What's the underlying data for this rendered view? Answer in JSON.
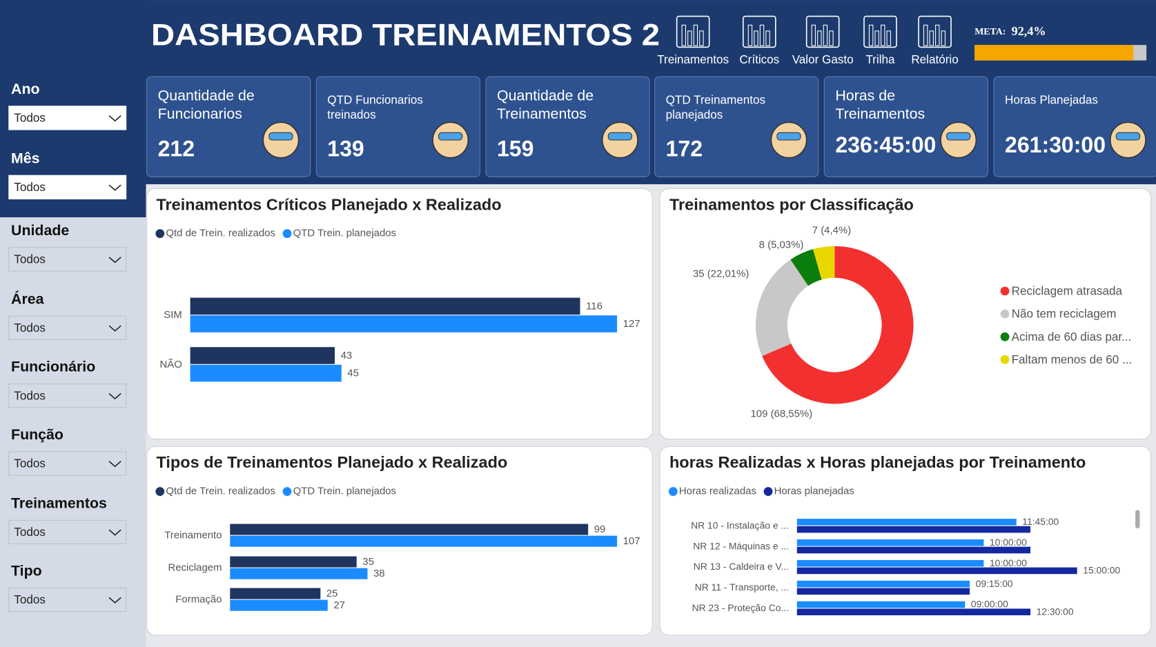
{
  "header": {
    "title": "DASHBOARD TREINAMENTOS 2"
  },
  "nav": [
    "Treinamentos",
    "Críticos",
    "Valor Gasto",
    "Trilha",
    "Relatório"
  ],
  "meta": {
    "label": "META:",
    "value": 92.4,
    "value_label": "92,4%",
    "color": "#f7a600"
  },
  "filters": [
    {
      "label": "Ano",
      "value": "Todos"
    },
    {
      "label": "Mês",
      "value": "Todos"
    },
    {
      "label": "Unidade",
      "value": "Todos"
    },
    {
      "label": "Área",
      "value": "Todos"
    },
    {
      "label": "Funcionário",
      "value": "Todos"
    },
    {
      "label": "Função",
      "value": "Todos"
    },
    {
      "label": "Treinamentos",
      "value": "Todos"
    },
    {
      "label": "Tipo",
      "value": "Todos"
    }
  ],
  "kpis": [
    {
      "label": "Quantidade de Funcionarios",
      "value": 212
    },
    {
      "label": "QTD Funcionarios treinados",
      "value": 139
    },
    {
      "label": "Quantidade de Treinamentos",
      "value": 159
    },
    {
      "label": "QTD Treinamentos planejados",
      "value": 172
    },
    {
      "label": "Horas de Treinamentos",
      "value": "236:45:00"
    },
    {
      "label": "Horas Planejadas",
      "value": "261:30:00"
    }
  ],
  "chart_data": [
    {
      "type": "bar",
      "title": "Treinamentos Críticos Planejado x Realizado",
      "categories": [
        "SIM",
        "NÃO"
      ],
      "series": [
        {
          "name": "Qtd de Trein. realizados",
          "color": "#1f3560",
          "values": [
            116,
            43
          ]
        },
        {
          "name": "QTD Trein. planejados",
          "color": "#1a8cff",
          "values": [
            127,
            45
          ]
        }
      ]
    },
    {
      "type": "donut",
      "title": "Treinamentos por Classificação",
      "categories": [
        "Reciclagem atrasada",
        "Não tem reciclagem",
        "Acima de 60 dias par...",
        "Faltam menos de 60 ..."
      ],
      "values": [
        109,
        35,
        8,
        7
      ],
      "value_labels": [
        "109 (68,55%)",
        "35 (22,01%)",
        "8 (5,03%)",
        "7 (4,4%)"
      ],
      "colors": [
        "#f23030",
        "#c8c8c8",
        "#0b7d0b",
        "#e8d800"
      ]
    },
    {
      "type": "bar",
      "title": "Tipos de Treinamentos Planejado x Realizado",
      "categories": [
        "Treinamento",
        "Reciclagem",
        "Formação"
      ],
      "series": [
        {
          "name": "Qtd de Trein. realizados",
          "color": "#1f3560",
          "values": [
            99,
            35,
            25
          ]
        },
        {
          "name": "QTD Trein. planejados",
          "color": "#1a8cff",
          "values": [
            107,
            38,
            27
          ]
        }
      ]
    },
    {
      "type": "bar",
      "title": "horas Realizadas x Horas planejadas por Treinamento",
      "categories": [
        "NR 10 - Instalação e ...",
        "NR 12 - Máquinas e ...",
        "NR 13 - Caldeira e V...",
        "NR 11 - Transporte, ...",
        "NR 23 - Proteção Co..."
      ],
      "series": [
        {
          "name": "Horas realizadas",
          "color": "#1a8cff",
          "values": [
            11.75,
            10,
            10,
            9.25,
            9
          ],
          "value_labels": [
            "11:45:00",
            "10:00:00",
            "10:00:00",
            "09:15:00",
            "09:00:00"
          ]
        },
        {
          "name": "Horas planejadas",
          "color": "#1428a0",
          "values": [
            12.5,
            12.5,
            15,
            9.25,
            12.5
          ],
          "value_labels": [
            null,
            null,
            "15:00:00",
            null,
            "12:30:00"
          ]
        }
      ]
    }
  ]
}
